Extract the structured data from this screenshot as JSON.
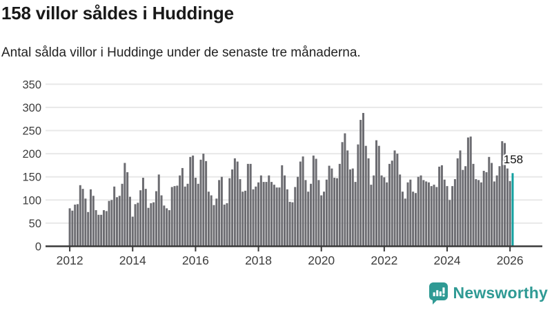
{
  "header": {
    "title": "158 villor såldes i Huddinge",
    "subtitle": "Antal sålda villor i Huddinge under de senaste tre månaderna."
  },
  "chart_data": {
    "type": "bar",
    "title": "158 villor såldes i Huddinge",
    "subtitle": "Antal sålda villor i Huddinge under de senaste tre månaderna.",
    "frequency": "monthly",
    "x_start_month": "2012-01",
    "x_end_month": "2026-02",
    "values": [
      82,
      77,
      90,
      91,
      132,
      124,
      103,
      74,
      123,
      109,
      78,
      68,
      68,
      78,
      76,
      98,
      100,
      129,
      106,
      109,
      135,
      180,
      160,
      107,
      64,
      91,
      94,
      121,
      148,
      124,
      83,
      93,
      95,
      119,
      155,
      110,
      88,
      82,
      78,
      128,
      130,
      131,
      153,
      169,
      129,
      135,
      193,
      196,
      148,
      135,
      187,
      200,
      184,
      118,
      110,
      89,
      103,
      143,
      150,
      90,
      93,
      147,
      166,
      190,
      183,
      145,
      118,
      120,
      178,
      178,
      123,
      129,
      138,
      153,
      139,
      139,
      153,
      139,
      133,
      127,
      127,
      175,
      153,
      123,
      96,
      95,
      128,
      150,
      183,
      194,
      143,
      118,
      135,
      196,
      189,
      143,
      110,
      118,
      144,
      174,
      168,
      148,
      147,
      178,
      225,
      244,
      207,
      166,
      168,
      139,
      220,
      273,
      288,
      217,
      190,
      133,
      153,
      229,
      217,
      153,
      149,
      138,
      178,
      185,
      207,
      200,
      155,
      118,
      103,
      138,
      144,
      118,
      115,
      150,
      153,
      143,
      140,
      138,
      130,
      133,
      128,
      172,
      175,
      144,
      130,
      100,
      130,
      145,
      190,
      207,
      165,
      173,
      235,
      237,
      178,
      145,
      143,
      138,
      163,
      160,
      193,
      180,
      140,
      153,
      173,
      227,
      223,
      168,
      141,
      158
    ],
    "highlight": {
      "index": 169,
      "value": 158,
      "label": "158"
    },
    "ylim": [
      0,
      350
    ],
    "yticks": [
      0,
      50,
      100,
      150,
      200,
      250,
      300,
      350
    ],
    "xtick_years": [
      "2012",
      "2014",
      "2016",
      "2018",
      "2020",
      "2022",
      "2024",
      "2026"
    ],
    "legend": "none",
    "grid": "horizontal",
    "colors": {
      "bar": "#6c6c71",
      "highlight_bar": "#11a0a0",
      "gridline": "#e8e8e8",
      "axis_line": "#3a3a3a",
      "axis_text": "#3d3d3d",
      "annotation_text": "#111111"
    }
  },
  "footer": {
    "brand": "Newsworthy",
    "brand_color": "#2f9a94",
    "icon": "newsworthy-bar-chart-bubble-icon"
  }
}
